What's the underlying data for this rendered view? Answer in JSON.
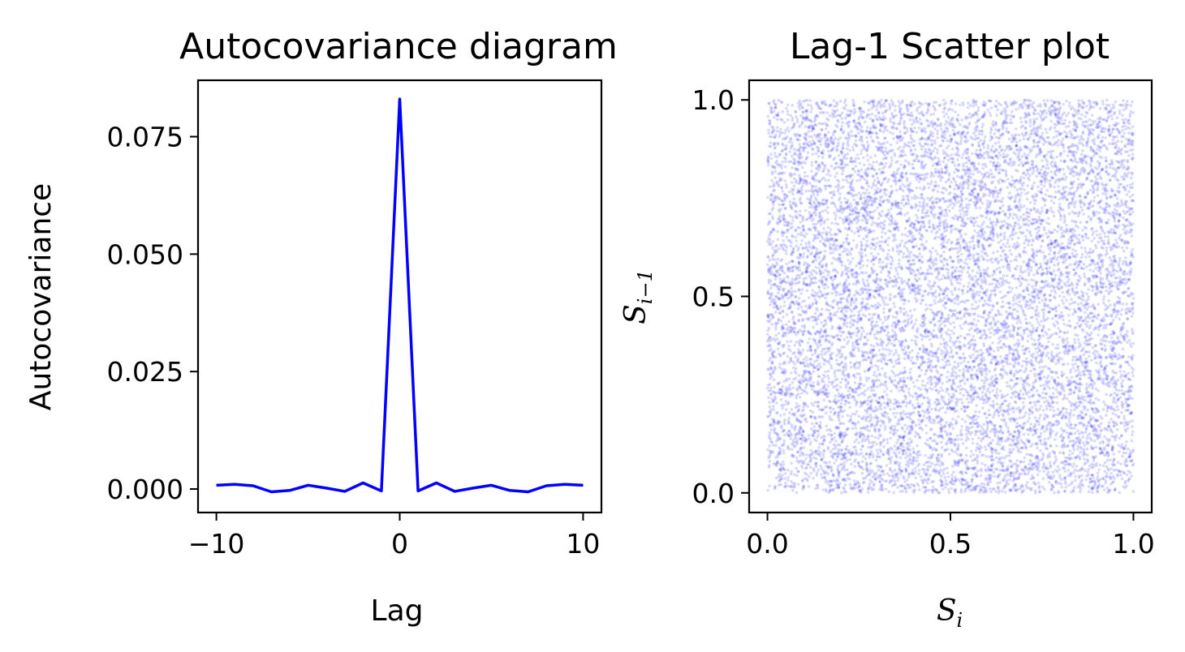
{
  "chart_data": [
    {
      "type": "line",
      "title": "Autocovariance diagram",
      "xlabel": "Lag",
      "ylabel": "Autocovariance",
      "xlim": [
        -11,
        11
      ],
      "ylim": [
        -0.005,
        0.087
      ],
      "xticks": [
        -10,
        0,
        10
      ],
      "xtick_labels": [
        "−10",
        "0",
        "10"
      ],
      "yticks": [
        0.0,
        0.025,
        0.05,
        0.075
      ],
      "ytick_labels": [
        "0.000",
        "0.025",
        "0.050",
        "0.075"
      ],
      "grid": false,
      "color": "#0000ff",
      "series": [
        {
          "x": [
            -10,
            -9,
            -8,
            -7,
            -6,
            -5,
            -4,
            -3,
            -2,
            -1,
            0,
            1,
            2,
            3,
            4,
            5,
            6,
            7,
            8,
            9,
            10
          ],
          "values": [
            0.0008,
            0.001,
            0.0007,
            -0.0006,
            -0.0003,
            0.0008,
            0.0002,
            -0.0005,
            0.0013,
            -0.0004,
            0.083,
            -0.0004,
            0.0013,
            -0.0005,
            0.0002,
            0.0008,
            -0.0003,
            -0.0006,
            0.0007,
            0.001,
            0.0008
          ]
        }
      ]
    },
    {
      "type": "scatter",
      "title": "Lag-1 Scatter plot",
      "xlabel": {
        "symbol": "S",
        "subscript": "i"
      },
      "ylabel": {
        "symbol": "S",
        "subscript": "i−1"
      },
      "xlim": [
        -0.05,
        1.05
      ],
      "ylim": [
        -0.05,
        1.05
      ],
      "xticks": [
        0.0,
        0.5,
        1.0
      ],
      "xtick_labels": [
        "0.0",
        "0.5",
        "1.0"
      ],
      "yticks": [
        0.0,
        0.5,
        1.0
      ],
      "ytick_labels": [
        "0.0",
        "0.5",
        "1.0"
      ],
      "grid": false,
      "color": "#0000ff",
      "point_alpha": 0.15,
      "distribution": "uniform",
      "x_range": [
        0,
        1
      ],
      "y_range": [
        0,
        1
      ],
      "n_points": 12000
    }
  ]
}
